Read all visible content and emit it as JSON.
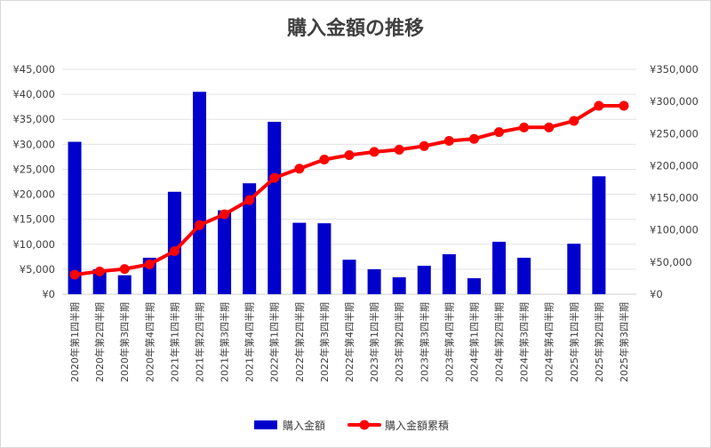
{
  "chart_data": {
    "type": "bar",
    "title": "購入金額の推移",
    "categories": [
      "2020年第1四半期",
      "2020年第2四半期",
      "2020年第3四半期",
      "2020年第4四半期",
      "2021年第1四半期",
      "2021年第2四半期",
      "2021年第3四半期",
      "2021年第4四半期",
      "2022年第1四半期",
      "2022年第2四半期",
      "2022年第3四半期",
      "2022年第4四半期",
      "2023年第1四半期",
      "2023年第2四半期",
      "2023年第3四半期",
      "2023年第4四半期",
      "2024年第1四半期",
      "2024年第2四半期",
      "2024年第3四半期",
      "2024年第4四半期",
      "2025年第1四半期",
      "2025年第2四半期",
      "2025年第3四半期"
    ],
    "series": [
      {
        "name": "購入金額",
        "type": "bar",
        "axis": "left",
        "color": "#0000cc",
        "values": [
          30500,
          5000,
          3800,
          7300,
          20500,
          40500,
          16800,
          22200,
          34500,
          14300,
          14200,
          6900,
          5000,
          3400,
          5700,
          8000,
          3200,
          10500,
          7300,
          0,
          10100,
          23600,
          0
        ]
      },
      {
        "name": "購入金額累積",
        "type": "line",
        "axis": "right",
        "color": "#ff0000",
        "values": [
          30500,
          35500,
          39300,
          46600,
          67100,
          107600,
          124400,
          146600,
          181100,
          195400,
          209600,
          216500,
          221500,
          224900,
          230600,
          238600,
          241800,
          252300,
          259600,
          259600,
          269700,
          293300,
          293300
        ]
      }
    ],
    "y_left": {
      "min": 0,
      "max": 45000,
      "step": 5000,
      "ticks": [
        "¥0",
        "¥5,000",
        "¥10,000",
        "¥15,000",
        "¥20,000",
        "¥25,000",
        "¥30,000",
        "¥35,000",
        "¥40,000",
        "¥45,000"
      ]
    },
    "y_right": {
      "min": 0,
      "max": 350000,
      "step": 50000,
      "ticks": [
        "¥0",
        "¥50,000",
        "¥100,000",
        "¥150,000",
        "¥200,000",
        "¥250,000",
        "¥300,000",
        "¥350,000"
      ]
    },
    "grid": true,
    "legend_position": "bottom"
  }
}
